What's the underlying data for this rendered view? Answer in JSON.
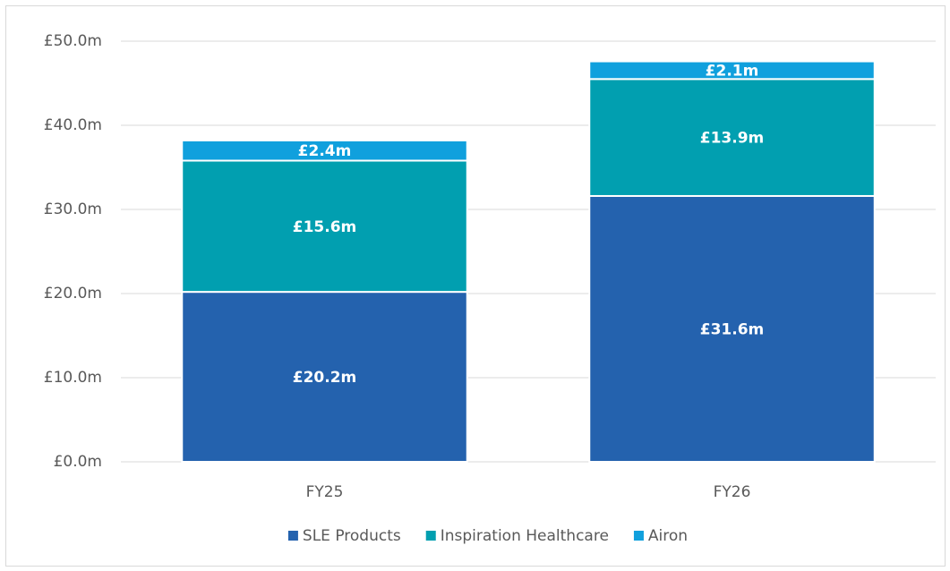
{
  "chart_data": {
    "type": "stacked_bar",
    "categories": [
      "FY25",
      "FY26"
    ],
    "series": [
      {
        "name": "SLE Products",
        "color": "#2462ae",
        "values": [
          20.2,
          31.6
        ],
        "value_labels": [
          "£20.2m",
          "£31.6m"
        ]
      },
      {
        "name": "Inspiration Healthcare",
        "color": "#019fb0",
        "values": [
          15.6,
          13.9
        ],
        "value_labels": [
          "£15.6m",
          "£13.9m"
        ]
      },
      {
        "name": "Airon",
        "color": "#10a0dd",
        "values": [
          2.4,
          2.1
        ],
        "value_labels": [
          "£2.4m",
          "£2.1m"
        ]
      }
    ],
    "ylim": [
      0,
      50
    ],
    "yticks": [
      {
        "value": 0,
        "label": "£0.0m"
      },
      {
        "value": 10,
        "label": "£10.0m"
      },
      {
        "value": 20,
        "label": "£20.0m"
      },
      {
        "value": 30,
        "label": "£30.0m"
      },
      {
        "value": 40,
        "label": "£40.0m"
      },
      {
        "value": 50,
        "label": "£50.0m"
      }
    ],
    "grid": true,
    "legend": "bottom"
  }
}
